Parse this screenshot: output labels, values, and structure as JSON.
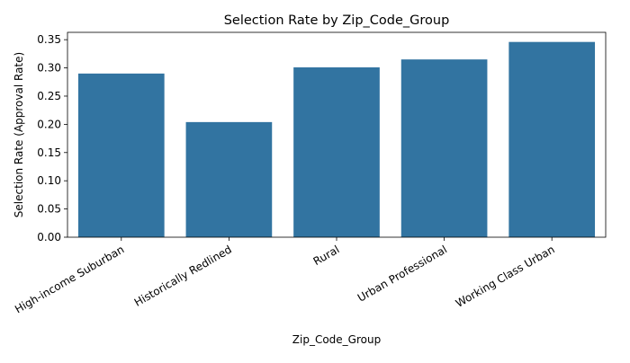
{
  "chart_data": {
    "type": "bar",
    "title": "Selection Rate by Zip_Code_Group",
    "xlabel": "Zip_Code_Group",
    "ylabel": "Selection Rate (Approval Rate)",
    "categories": [
      "High-income Suburban",
      "Historically Redlined",
      "Rural",
      "Urban Professional",
      "Working Class Urban"
    ],
    "values": [
      0.29,
      0.204,
      0.301,
      0.315,
      0.346
    ],
    "ylim": [
      0,
      0.363
    ],
    "yticks": [
      0.0,
      0.05,
      0.1,
      0.15,
      0.2,
      0.25,
      0.3,
      0.35
    ],
    "ytick_labels": [
      "0.00",
      "0.05",
      "0.10",
      "0.15",
      "0.20",
      "0.25",
      "0.30",
      "0.35"
    ],
    "grid": false,
    "bar_color": "#3274a1"
  }
}
